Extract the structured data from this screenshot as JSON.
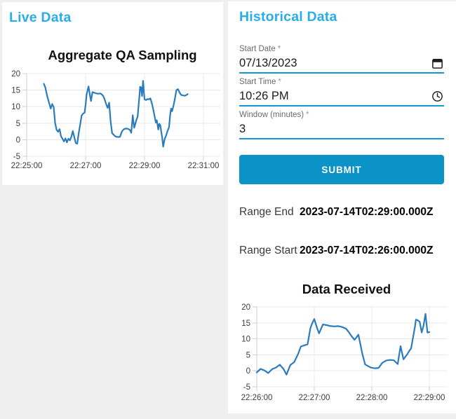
{
  "colors": {
    "heading_accent": "#29acea",
    "submit_button_bg": "#0b93c8",
    "input_underline": "#1199d6",
    "chart_line": "#2b7cbd",
    "page_background": "#efefef",
    "card_background": "#ffffff",
    "grid_line": "#e8e8e8",
    "axis_line": "#cfcfcf"
  },
  "live_panel": {
    "heading": "Live Data"
  },
  "historical_panel": {
    "heading": "Historical Data",
    "form": {
      "start_date": {
        "label": "Start Date",
        "required_marker": "*",
        "value": "07/13/2023",
        "icon": "calendar-icon"
      },
      "start_time": {
        "label": "Start Time",
        "required_marker": "*",
        "value": "10:26 PM",
        "icon": "clock-icon"
      },
      "window_minutes": {
        "label": "Window (minutes)",
        "required_marker": "*",
        "value": "3"
      },
      "submit_label": "SUBMIT"
    },
    "results": {
      "range_end_label": "Range End",
      "range_end_value": "2023-07-14T02:29:00.000Z",
      "range_start_label": "Range Start",
      "range_start_value": "2023-07-14T02:26:00.000Z"
    }
  },
  "chart_data": [
    {
      "id": "aggregate-qa-sampling",
      "type": "line",
      "title": "Aggregate QA Sampling",
      "xlabel": "",
      "ylabel": "",
      "legend": "none",
      "grid": true,
      "line_color": "#2b7cbd",
      "x_axis_start_time": "22:25:00",
      "x_tick_labels": [
        "22:25:00",
        "22:27:00",
        "22:29:00",
        "22:31:00"
      ],
      "x_tick_seconds": [
        0,
        120,
        240,
        360
      ],
      "y_ticks": [
        20,
        15,
        10,
        5,
        0,
        -5
      ],
      "ylim": [
        -5,
        20
      ],
      "points_seconds_value": [
        [
          35,
          16.9
        ],
        [
          38,
          15.8
        ],
        [
          42,
          13.1
        ],
        [
          46,
          11.0
        ],
        [
          49,
          9.4
        ],
        [
          52,
          10.8
        ],
        [
          55,
          9.9
        ],
        [
          58,
          5.0
        ],
        [
          61,
          3.0
        ],
        [
          64,
          2.4
        ],
        [
          67,
          3.2
        ],
        [
          70,
          1.0
        ],
        [
          73,
          0.3
        ],
        [
          76,
          -0.5
        ],
        [
          79,
          0.4
        ],
        [
          82,
          -0.8
        ],
        [
          85,
          0.3
        ],
        [
          88,
          -0.2
        ],
        [
          91,
          0.9
        ],
        [
          94,
          2.6
        ],
        [
          97,
          0.8
        ],
        [
          100,
          -1.0
        ],
        [
          103,
          -1.2
        ],
        [
          106,
          2.0
        ],
        [
          109,
          4.6
        ],
        [
          112,
          7.3
        ],
        [
          115,
          7.9
        ],
        [
          118,
          8.2
        ],
        [
          120,
          10.5
        ],
        [
          122,
          13.6
        ],
        [
          124,
          14.9
        ],
        [
          126,
          16.1
        ],
        [
          129,
          13.3
        ],
        [
          131,
          11.7
        ],
        [
          134,
          14.4
        ],
        [
          138,
          14.2
        ],
        [
          142,
          14.0
        ],
        [
          146,
          13.9
        ],
        [
          150,
          14.0
        ],
        [
          153,
          13.7
        ],
        [
          156,
          13.2
        ],
        [
          159,
          12.1
        ],
        [
          162,
          10.7
        ],
        [
          165,
          9.6
        ],
        [
          168,
          11.2
        ],
        [
          171,
          5.5
        ],
        [
          174,
          2.0
        ],
        [
          177,
          1.5
        ],
        [
          180,
          1.1
        ],
        [
          183,
          0.9
        ],
        [
          186,
          0.8
        ],
        [
          190,
          0.9
        ],
        [
          194,
          2.5
        ],
        [
          198,
          3.2
        ],
        [
          202,
          3.4
        ],
        [
          206,
          3.3
        ],
        [
          210,
          3.0
        ],
        [
          213,
          2.1
        ],
        [
          216,
          7.4
        ],
        [
          219,
          3.6
        ],
        [
          222,
          5.2
        ],
        [
          224,
          6.2
        ],
        [
          226,
          7.0
        ],
        [
          228,
          10.5
        ],
        [
          230,
          13.8
        ],
        [
          231,
          16.0
        ],
        [
          233,
          15.8
        ],
        [
          235,
          13.2
        ],
        [
          237,
          17.8
        ],
        [
          240,
          12.2
        ],
        [
          243,
          12.0
        ],
        [
          246,
          12.3
        ],
        [
          249,
          12.2
        ],
        [
          252,
          12.5
        ],
        [
          255,
          11.0
        ],
        [
          258,
          9.0
        ],
        [
          260,
          7.5
        ],
        [
          263,
          5.2
        ],
        [
          265,
          5.9
        ],
        [
          268,
          3.1
        ],
        [
          270,
          4.8
        ],
        [
          272,
          4.4
        ],
        [
          274,
          2.5
        ],
        [
          276,
          0.6
        ],
        [
          278,
          -2.1
        ],
        [
          281,
          0.2
        ],
        [
          284,
          1.3
        ],
        [
          287,
          2.7
        ],
        [
          290,
          3.8
        ],
        [
          292,
          7.2
        ],
        [
          294,
          9.4
        ],
        [
          296,
          8.6
        ],
        [
          299,
          10.3
        ],
        [
          302,
          12.5
        ],
        [
          305,
          15.0
        ],
        [
          308,
          15.3
        ],
        [
          311,
          14.4
        ],
        [
          314,
          13.6
        ],
        [
          318,
          13.4
        ],
        [
          322,
          13.3
        ],
        [
          325,
          13.5
        ],
        [
          328,
          13.8
        ]
      ]
    },
    {
      "id": "data-received",
      "type": "line",
      "title": "Data Received",
      "xlabel": "",
      "ylabel": "",
      "legend": "none",
      "grid": true,
      "line_color": "#2b7cbd",
      "x_axis_start_time": "22:26:00",
      "x_tick_labels": [
        "22:26:00",
        "22:27:00",
        "22:28:00",
        "22:29:00"
      ],
      "x_tick_seconds": [
        0,
        60,
        120,
        180
      ],
      "y_ticks": [
        20,
        15,
        10,
        5,
        0,
        -5
      ],
      "ylim": [
        -5,
        20
      ],
      "points_seconds_value": [
        [
          0,
          -0.5
        ],
        [
          4,
          0.6
        ],
        [
          8,
          0.1
        ],
        [
          12,
          -0.7
        ],
        [
          16,
          0.5
        ],
        [
          20,
          1.0
        ],
        [
          24,
          1.9
        ],
        [
          28,
          0.5
        ],
        [
          31,
          -1.2
        ],
        [
          35,
          1.8
        ],
        [
          39,
          2.7
        ],
        [
          43,
          5.2
        ],
        [
          46,
          7.6
        ],
        [
          50,
          8.0
        ],
        [
          53,
          8.3
        ],
        [
          56,
          13.4
        ],
        [
          58,
          15.0
        ],
        [
          60,
          16.2
        ],
        [
          63,
          13.3
        ],
        [
          65,
          11.7
        ],
        [
          69,
          14.5
        ],
        [
          73,
          14.3
        ],
        [
          77,
          14.0
        ],
        [
          81,
          13.9
        ],
        [
          85,
          14.0
        ],
        [
          89,
          13.7
        ],
        [
          93,
          13.2
        ],
        [
          96,
          12.1
        ],
        [
          99,
          10.8
        ],
        [
          102,
          9.7
        ],
        [
          106,
          11.3
        ],
        [
          110,
          5.5
        ],
        [
          113,
          2.0
        ],
        [
          116,
          1.5
        ],
        [
          119,
          1.0
        ],
        [
          123,
          0.8
        ],
        [
          127,
          0.9
        ],
        [
          131,
          2.5
        ],
        [
          135,
          3.2
        ],
        [
          139,
          3.4
        ],
        [
          143,
          3.3
        ],
        [
          147,
          2.1
        ],
        [
          150,
          7.7
        ],
        [
          153,
          3.6
        ],
        [
          157,
          5.2
        ],
        [
          159,
          6.2
        ],
        [
          161,
          7.0
        ],
        [
          163,
          10.5
        ],
        [
          165,
          13.8
        ],
        [
          166,
          16.0
        ],
        [
          168,
          15.8
        ],
        [
          170,
          15.3
        ],
        [
          172,
          12.0
        ],
        [
          174,
          14.2
        ],
        [
          176,
          17.8
        ],
        [
          178,
          12.0
        ],
        [
          180,
          12.1
        ]
      ]
    }
  ]
}
